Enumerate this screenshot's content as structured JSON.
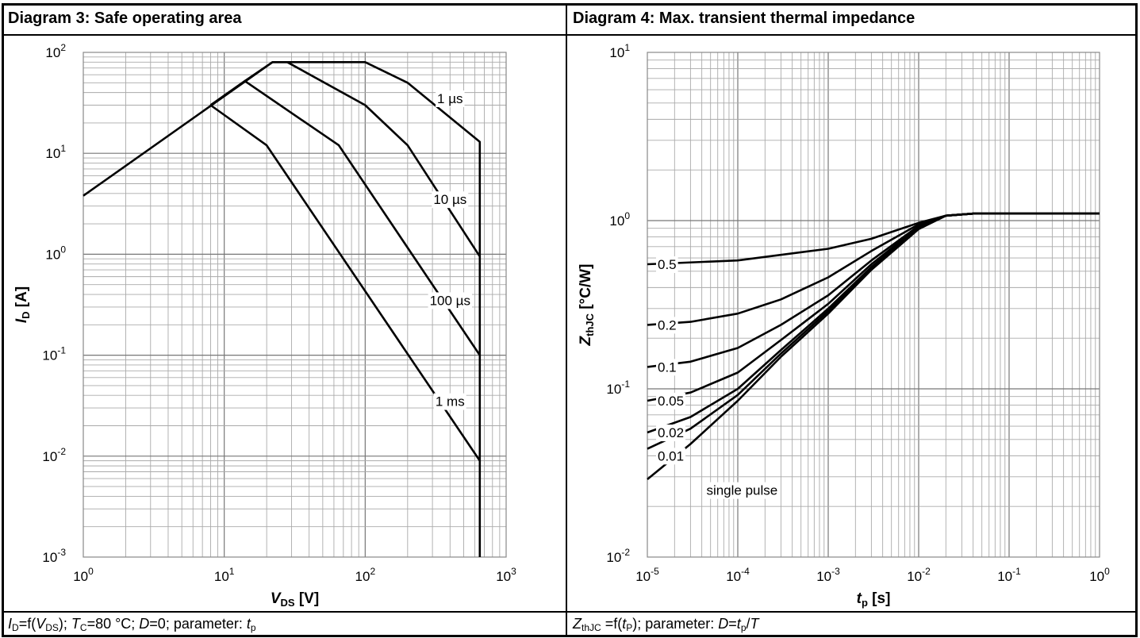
{
  "panels": [
    {
      "title": "Diagram 3: Safe operating area",
      "caption": {
        "p1": "I",
        "p1_sub": "D",
        "p2": "=f(",
        "p3": "V",
        "p3_sub": "DS",
        "p4": "); ",
        "p5": "T",
        "p5_sub": "C",
        "p6": "=80 °C; ",
        "p7": "D",
        "p8": "=0; parameter: ",
        "p9": "t",
        "p9_sub": "p"
      }
    },
    {
      "title": "Diagram 4: Max. transient thermal impedance",
      "caption": {
        "p1": "Z",
        "p1_sub": "thJC",
        "p2": " =f(",
        "p3": "t",
        "p3_sub": "P",
        "p4": "); parameter: ",
        "p5": "D",
        "p6": "=",
        "p7": "t",
        "p7_sub": "p",
        "p8": "/",
        "p9": "T"
      }
    }
  ],
  "chart_data": [
    {
      "type": "line",
      "title": "Diagram 3: Safe operating area",
      "xlabel": {
        "main": "V",
        "sub": "DS",
        "unit": " [V]"
      },
      "ylabel": {
        "main": "I",
        "sub": "D",
        "unit": " [A]"
      },
      "xscale": "log",
      "yscale": "log",
      "xlim": [
        1,
        1000
      ],
      "ylim": [
        0.001,
        100
      ],
      "grid": true,
      "xticks": [
        {
          "base": "10",
          "exp": "0"
        },
        {
          "base": "10",
          "exp": "1"
        },
        {
          "base": "10",
          "exp": "2"
        },
        {
          "base": "10",
          "exp": "3"
        }
      ],
      "yticks": [
        {
          "base": "10",
          "exp": "-3"
        },
        {
          "base": "10",
          "exp": "-2"
        },
        {
          "base": "10",
          "exp": "-1"
        },
        {
          "base": "10",
          "exp": "0"
        },
        {
          "base": "10",
          "exp": "1"
        },
        {
          "base": "10",
          "exp": "2"
        }
      ],
      "series": [
        {
          "name": "1 µs",
          "x": [
            1,
            22,
            30,
            100,
            200,
            650,
            650
          ],
          "y": [
            3.8,
            80,
            80,
            80,
            50,
            13,
            0.001
          ]
        },
        {
          "name": "10 µs",
          "x": [
            14,
            22,
            28,
            100,
            200,
            650
          ],
          "y": [
            52,
            80,
            80,
            30,
            12,
            0.95
          ]
        },
        {
          "name": "100 µs",
          "x": [
            8,
            14,
            65,
            650
          ],
          "y": [
            30,
            52,
            12,
            0.1
          ]
        },
        {
          "name": "1 ms",
          "x": [
            8,
            20,
            650
          ],
          "y": [
            30,
            12,
            0.009
          ]
        }
      ],
      "annotations": [
        {
          "text": "1 µs",
          "x": 400,
          "y": 35
        },
        {
          "text": "10 µs",
          "x": 400,
          "y": 3.5
        },
        {
          "text": "100 µs",
          "x": 400,
          "y": 0.35
        },
        {
          "text": "1 ms",
          "x": 400,
          "y": 0.035
        }
      ]
    },
    {
      "type": "line",
      "title": "Diagram 4: Max. transient thermal impedance",
      "xlabel": {
        "main": "t",
        "sub": "p",
        "unit": " [s]"
      },
      "ylabel": {
        "main": "Z",
        "sub": "thJC",
        "unit": " [°C/W]"
      },
      "xscale": "log",
      "yscale": "log",
      "xlim": [
        1e-05,
        1
      ],
      "ylim": [
        0.01,
        10
      ],
      "grid": true,
      "xticks": [
        {
          "base": "10",
          "exp": "-5"
        },
        {
          "base": "10",
          "exp": "-4"
        },
        {
          "base": "10",
          "exp": "-3"
        },
        {
          "base": "10",
          "exp": "-2"
        },
        {
          "base": "10",
          "exp": "-1"
        },
        {
          "base": "10",
          "exp": "0"
        }
      ],
      "yticks": [
        {
          "base": "10",
          "exp": "-2"
        },
        {
          "base": "10",
          "exp": "-1"
        },
        {
          "base": "10",
          "exp": "0"
        },
        {
          "base": "10",
          "exp": "1"
        }
      ],
      "series": [
        {
          "name": "0.5",
          "x": [
            1e-05,
            0.0001,
            0.001,
            0.003,
            0.01,
            0.02,
            0.04,
            1
          ],
          "y": [
            0.55,
            0.58,
            0.68,
            0.78,
            0.97,
            1.07,
            1.1,
            1.1
          ]
        },
        {
          "name": "0.2",
          "x": [
            1e-05,
            3e-05,
            0.0001,
            0.0003,
            0.001,
            0.003,
            0.01,
            0.02,
            0.04,
            1
          ],
          "y": [
            0.24,
            0.25,
            0.28,
            0.34,
            0.46,
            0.66,
            0.95,
            1.07,
            1.1,
            1.1
          ]
        },
        {
          "name": "0.1",
          "x": [
            1e-05,
            3e-05,
            0.0001,
            0.0003,
            0.001,
            0.003,
            0.01,
            0.02,
            0.04,
            1
          ],
          "y": [
            0.135,
            0.145,
            0.175,
            0.24,
            0.36,
            0.58,
            0.93,
            1.07,
            1.1,
            1.1
          ]
        },
        {
          "name": "0.05",
          "x": [
            1e-05,
            3e-05,
            0.0001,
            0.0003,
            0.001,
            0.003,
            0.01,
            0.02,
            0.04,
            1
          ],
          "y": [
            0.085,
            0.095,
            0.125,
            0.195,
            0.32,
            0.55,
            0.92,
            1.07,
            1.1,
            1.1
          ]
        },
        {
          "name": "0.02",
          "x": [
            1e-05,
            3e-05,
            0.0001,
            0.0003,
            0.001,
            0.003,
            0.01,
            0.02,
            0.04,
            1
          ],
          "y": [
            0.055,
            0.068,
            0.1,
            0.17,
            0.3,
            0.53,
            0.91,
            1.07,
            1.1,
            1.1
          ]
        },
        {
          "name": "0.01",
          "x": [
            1e-05,
            3e-05,
            0.0001,
            0.0003,
            0.001,
            0.003,
            0.01,
            0.02,
            0.04,
            1
          ],
          "y": [
            0.044,
            0.058,
            0.092,
            0.162,
            0.29,
            0.52,
            0.9,
            1.07,
            1.1,
            1.1
          ]
        },
        {
          "name": "single pulse",
          "x": [
            1e-05,
            3e-05,
            0.0001,
            0.0003,
            0.001,
            0.003,
            0.01,
            0.02,
            0.04,
            1
          ],
          "y": [
            0.029,
            0.047,
            0.085,
            0.155,
            0.28,
            0.51,
            0.89,
            1.07,
            1.1,
            1.1
          ]
        }
      ],
      "annotations": [
        {
          "text": "0.5",
          "x": 1.3e-05,
          "y": 0.55
        },
        {
          "text": "0.2",
          "x": 1.3e-05,
          "y": 0.24
        },
        {
          "text": "0.1",
          "x": 1.3e-05,
          "y": 0.135
        },
        {
          "text": "0.05",
          "x": 1.3e-05,
          "y": 0.085
        },
        {
          "text": "0.02",
          "x": 1.3e-05,
          "y": 0.055
        },
        {
          "text": "0.01",
          "x": 1.3e-05,
          "y": 0.04
        },
        {
          "text": "single pulse",
          "x": 4.5e-05,
          "y": 0.025
        }
      ]
    }
  ]
}
